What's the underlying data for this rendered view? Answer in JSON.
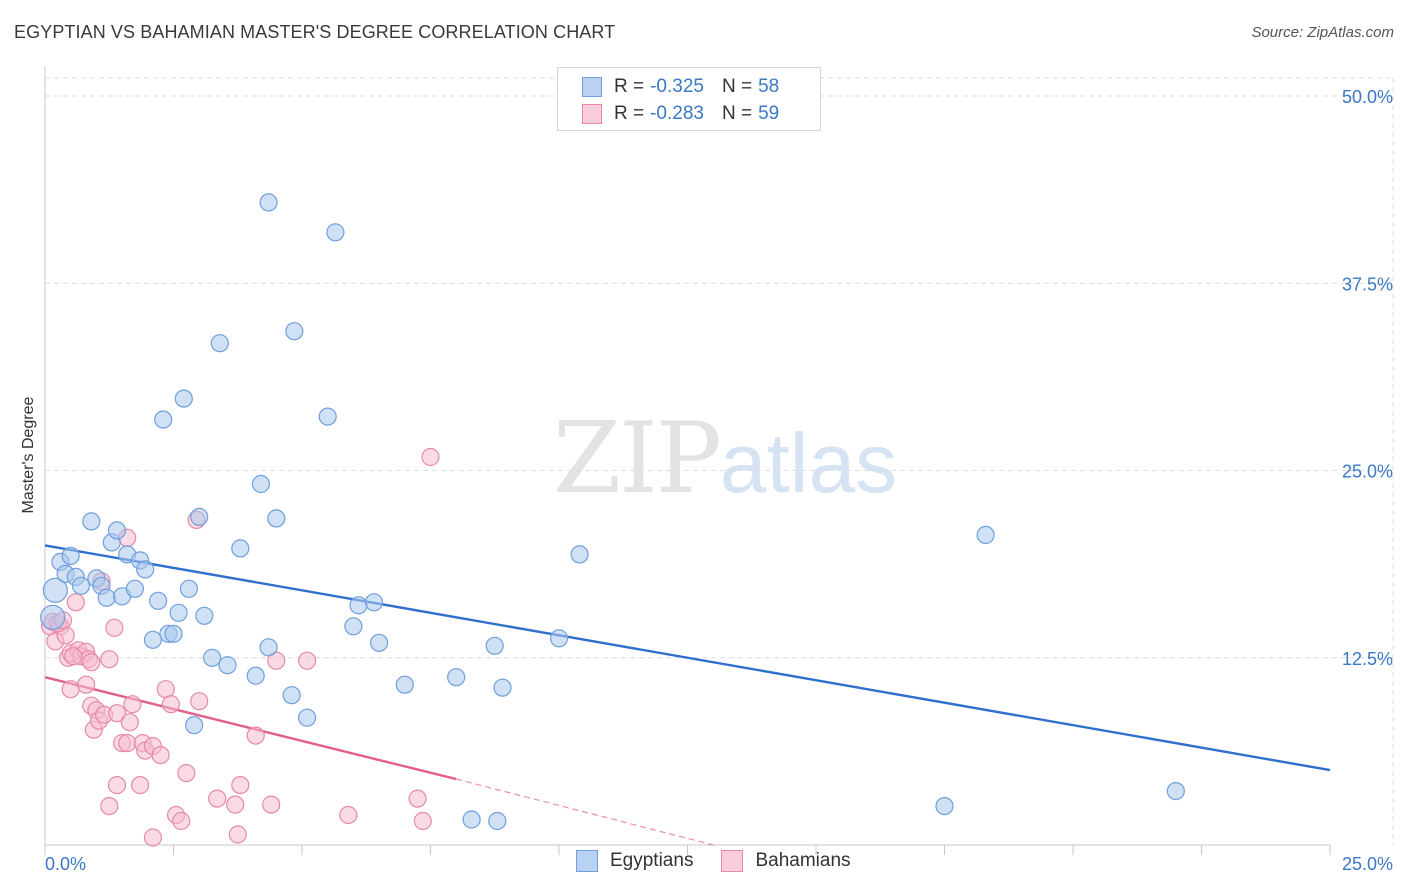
{
  "header": {
    "title": "EGYPTIAN VS BAHAMIAN MASTER'S DEGREE CORRELATION CHART",
    "source": "Source: ZipAtlas.com"
  },
  "watermark": {
    "zip": "ZIP",
    "atlas": "atlas"
  },
  "legend": {
    "egyptians": {
      "r_label": "R =",
      "r_value": "-0.325",
      "n_label": "N =",
      "n_value": "58"
    },
    "bahamians": {
      "r_label": "R =",
      "r_value": "-0.283",
      "n_label": "N =",
      "n_value": "59"
    }
  },
  "bottom_legend": {
    "egyptians": "Egyptians",
    "bahamians": "Bahamians"
  },
  "colors": {
    "blue_fill": "#a9c8ee",
    "blue_stroke": "#6f9fdc",
    "blue_line": "#2f6fce",
    "pink_fill": "#f5bccd",
    "pink_stroke": "#e68aa7",
    "pink_line": "#e0608a",
    "grid": "#dcdcdc",
    "tick_text": "#3a78c6"
  },
  "chart_data": {
    "type": "scatter",
    "title": "EGYPTIAN VS BAHAMIAN MASTER'S DEGREE CORRELATION CHART",
    "xlabel": "",
    "ylabel": "Master's Degree",
    "xlim": [
      0,
      25
    ],
    "ylim": [
      0,
      50
    ],
    "x_tick_labels": [
      {
        "value": 0,
        "label": "0.0%"
      },
      {
        "value": 25,
        "label": "25.0%"
      }
    ],
    "y_tick_labels": [
      {
        "value": 12.5,
        "label": "12.5%"
      },
      {
        "value": 25,
        "label": "25.0%"
      },
      {
        "value": 37.5,
        "label": "37.5%"
      },
      {
        "value": 50,
        "label": "50.0%"
      }
    ],
    "series": [
      {
        "name": "Egyptians",
        "color": "#a9c8ee",
        "points": [
          [
            0.15,
            15.2
          ],
          [
            0.2,
            17.0
          ],
          [
            0.3,
            18.9
          ],
          [
            0.4,
            18.1
          ],
          [
            0.5,
            19.3
          ],
          [
            0.6,
            17.9
          ],
          [
            0.7,
            17.3
          ],
          [
            0.9,
            21.6
          ],
          [
            1.0,
            17.8
          ],
          [
            1.1,
            17.3
          ],
          [
            1.2,
            16.5
          ],
          [
            1.3,
            20.2
          ],
          [
            1.4,
            21.0
          ],
          [
            1.5,
            16.6
          ],
          [
            1.6,
            19.4
          ],
          [
            1.75,
            17.1
          ],
          [
            1.85,
            19.0
          ],
          [
            1.95,
            18.4
          ],
          [
            2.1,
            13.7
          ],
          [
            2.2,
            16.3
          ],
          [
            2.3,
            28.4
          ],
          [
            2.4,
            14.1
          ],
          [
            2.5,
            14.1
          ],
          [
            2.6,
            15.5
          ],
          [
            2.7,
            29.8
          ],
          [
            2.8,
            17.1
          ],
          [
            2.9,
            8.0
          ],
          [
            3.0,
            21.9
          ],
          [
            3.1,
            15.3
          ],
          [
            3.25,
            12.5
          ],
          [
            3.4,
            33.5
          ],
          [
            3.55,
            12.0
          ],
          [
            3.8,
            19.8
          ],
          [
            4.1,
            11.3
          ],
          [
            4.2,
            24.1
          ],
          [
            4.35,
            13.2
          ],
          [
            4.35,
            42.9
          ],
          [
            4.5,
            21.8
          ],
          [
            4.8,
            10.0
          ],
          [
            4.85,
            34.3
          ],
          [
            5.1,
            8.5
          ],
          [
            5.5,
            28.6
          ],
          [
            5.65,
            40.9
          ],
          [
            6.0,
            14.6
          ],
          [
            6.1,
            16.0
          ],
          [
            6.4,
            16.2
          ],
          [
            6.5,
            13.5
          ],
          [
            7.0,
            10.7
          ],
          [
            8.0,
            11.2
          ],
          [
            8.3,
            1.7
          ],
          [
            8.75,
            13.3
          ],
          [
            8.8,
            1.6
          ],
          [
            8.9,
            10.5
          ],
          [
            10.0,
            13.8
          ],
          [
            10.4,
            19.4
          ],
          [
            17.5,
            2.6
          ],
          [
            18.3,
            20.7
          ],
          [
            22.0,
            3.6
          ]
        ]
      },
      {
        "name": "Bahamians",
        "color": "#f5bccd",
        "points": [
          [
            0.1,
            14.6
          ],
          [
            0.15,
            14.9
          ],
          [
            0.2,
            13.6
          ],
          [
            0.3,
            14.6
          ],
          [
            0.4,
            14.0
          ],
          [
            0.45,
            12.5
          ],
          [
            0.5,
            12.8
          ],
          [
            0.5,
            10.4
          ],
          [
            0.6,
            16.2
          ],
          [
            0.65,
            13.0
          ],
          [
            0.7,
            12.6
          ],
          [
            0.8,
            12.9
          ],
          [
            0.8,
            10.7
          ],
          [
            0.85,
            12.4
          ],
          [
            0.9,
            12.2
          ],
          [
            0.9,
            9.3
          ],
          [
            0.95,
            7.7
          ],
          [
            1.0,
            9.0
          ],
          [
            1.05,
            8.3
          ],
          [
            1.1,
            17.6
          ],
          [
            1.15,
            8.7
          ],
          [
            1.25,
            12.4
          ],
          [
            1.25,
            2.6
          ],
          [
            1.35,
            14.5
          ],
          [
            1.4,
            8.8
          ],
          [
            1.4,
            4.0
          ],
          [
            1.5,
            6.8
          ],
          [
            1.6,
            20.5
          ],
          [
            1.6,
            6.8
          ],
          [
            1.65,
            8.2
          ],
          [
            1.7,
            9.4
          ],
          [
            1.85,
            4.0
          ],
          [
            1.9,
            6.8
          ],
          [
            1.95,
            6.3
          ],
          [
            2.1,
            6.6
          ],
          [
            2.1,
            0.5
          ],
          [
            2.25,
            6.0
          ],
          [
            2.35,
            10.4
          ],
          [
            2.45,
            9.4
          ],
          [
            2.55,
            2.0
          ],
          [
            2.65,
            1.6
          ],
          [
            2.75,
            4.8
          ],
          [
            2.95,
            21.7
          ],
          [
            3.0,
            9.6
          ],
          [
            3.35,
            3.1
          ],
          [
            3.7,
            2.7
          ],
          [
            3.75,
            0.7
          ],
          [
            3.8,
            4.0
          ],
          [
            4.1,
            7.3
          ],
          [
            4.4,
            2.7
          ],
          [
            4.5,
            12.3
          ],
          [
            5.1,
            12.3
          ],
          [
            5.9,
            2.0
          ],
          [
            7.25,
            3.1
          ],
          [
            7.35,
            1.6
          ],
          [
            7.5,
            25.9
          ],
          [
            0.25,
            14.8
          ],
          [
            0.35,
            15.0
          ],
          [
            0.55,
            12.6
          ]
        ]
      }
    ],
    "trend_lines": [
      {
        "name": "Egyptians",
        "x": [
          0,
          25
        ],
        "y": [
          20.0,
          5.0
        ]
      },
      {
        "name": "Bahamians",
        "x": [
          0,
          8
        ],
        "y": [
          11.2,
          4.4
        ],
        "dashed_extension_to": [
          13,
          0
        ]
      }
    ]
  }
}
